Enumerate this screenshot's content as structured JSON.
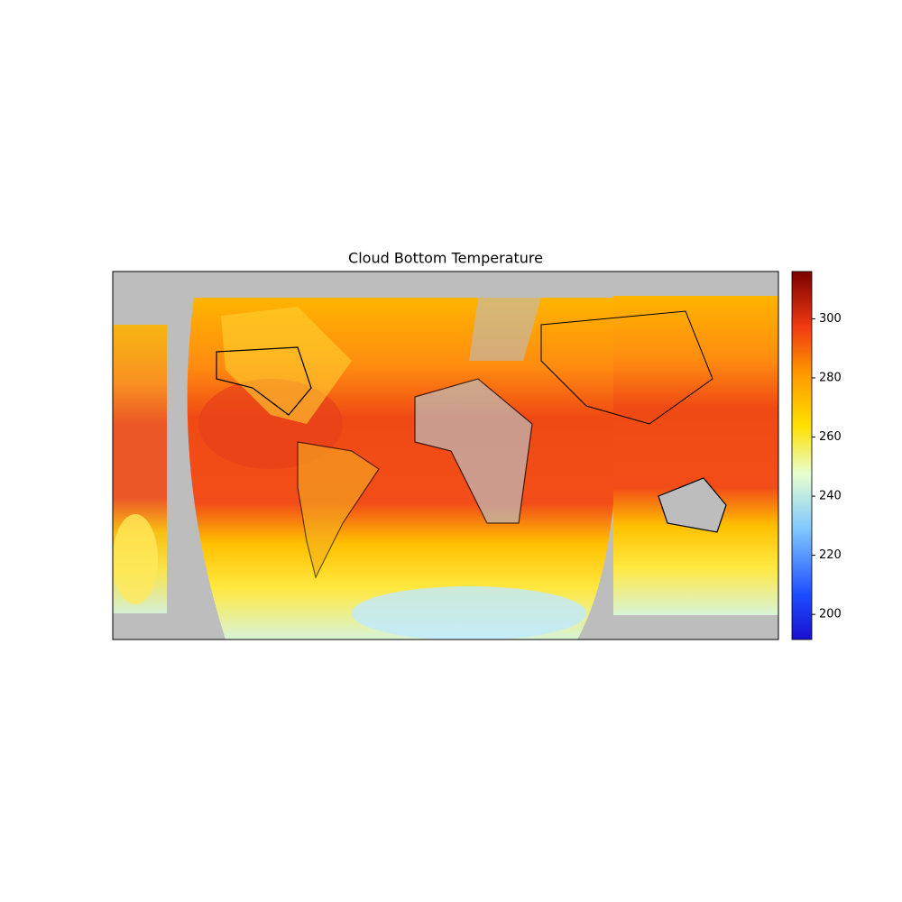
{
  "chart_data": {
    "type": "map",
    "title": "Cloud Bottom Temperature",
    "colorbar": {
      "lim": [
        191.5,
        316
      ],
      "ticks": [
        200,
        220,
        240,
        260,
        280,
        300
      ]
    }
  }
}
